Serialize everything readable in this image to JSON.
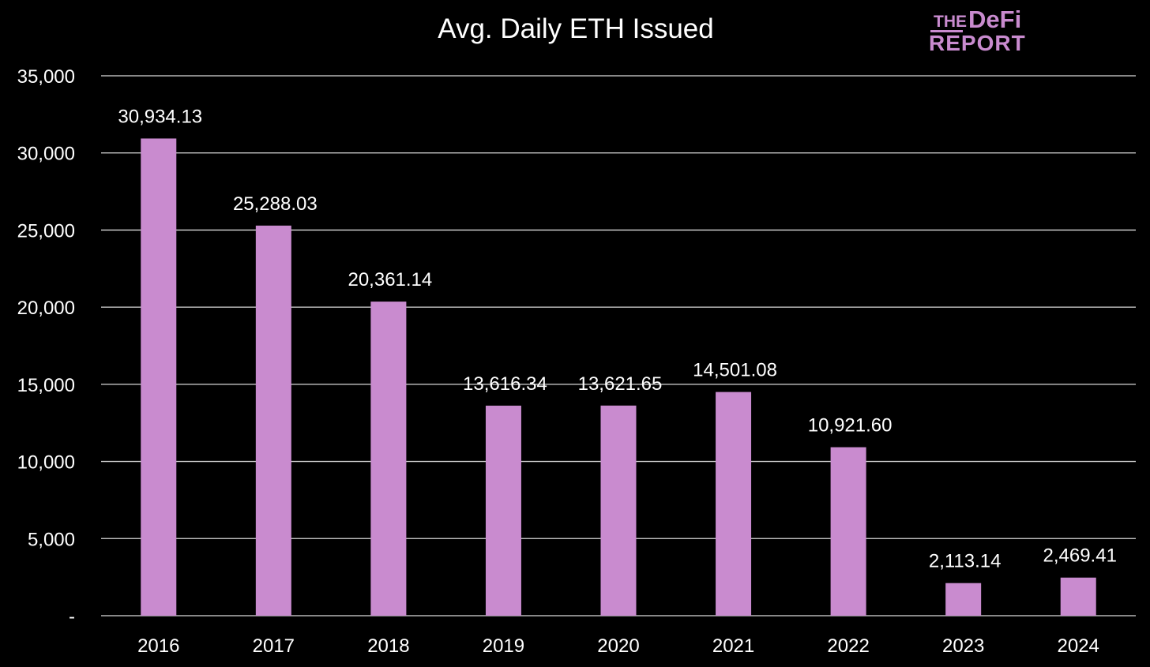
{
  "chart_data": {
    "type": "bar",
    "title": "Avg. Daily ETH Issued",
    "xlabel": "",
    "ylabel": "",
    "categories": [
      "2016",
      "2017",
      "2018",
      "2019",
      "2020",
      "2021",
      "2022",
      "2023",
      "2024"
    ],
    "values": [
      30934.13,
      25288.03,
      20361.14,
      13616.34,
      13621.65,
      14501.08,
      10921.6,
      2113.14,
      2469.41
    ],
    "value_labels": [
      "30,934.13",
      "25,288.03",
      "20,361.14",
      "13,616.34",
      "13,621.65",
      "14,501.08",
      "10,921.60",
      "2,113.14",
      "2,469.41"
    ],
    "ylim": [
      0,
      35000
    ],
    "yticks": [
      0,
      5000,
      10000,
      15000,
      20000,
      25000,
      30000,
      35000
    ],
    "ytick_labels": [
      "-",
      "5,000",
      "10,000",
      "15,000",
      "20,000",
      "25,000",
      "30,000",
      "35,000"
    ],
    "grid": true,
    "legend": "none",
    "colors": {
      "background": "#000000",
      "bar": "#C98BCF",
      "text": "#FFFFFF",
      "grid": "#D9D9D9",
      "logo": "#C98BCF"
    }
  },
  "logo": {
    "line1_small": "THE",
    "line1_large": "DeFi",
    "line2": "REPORT"
  }
}
